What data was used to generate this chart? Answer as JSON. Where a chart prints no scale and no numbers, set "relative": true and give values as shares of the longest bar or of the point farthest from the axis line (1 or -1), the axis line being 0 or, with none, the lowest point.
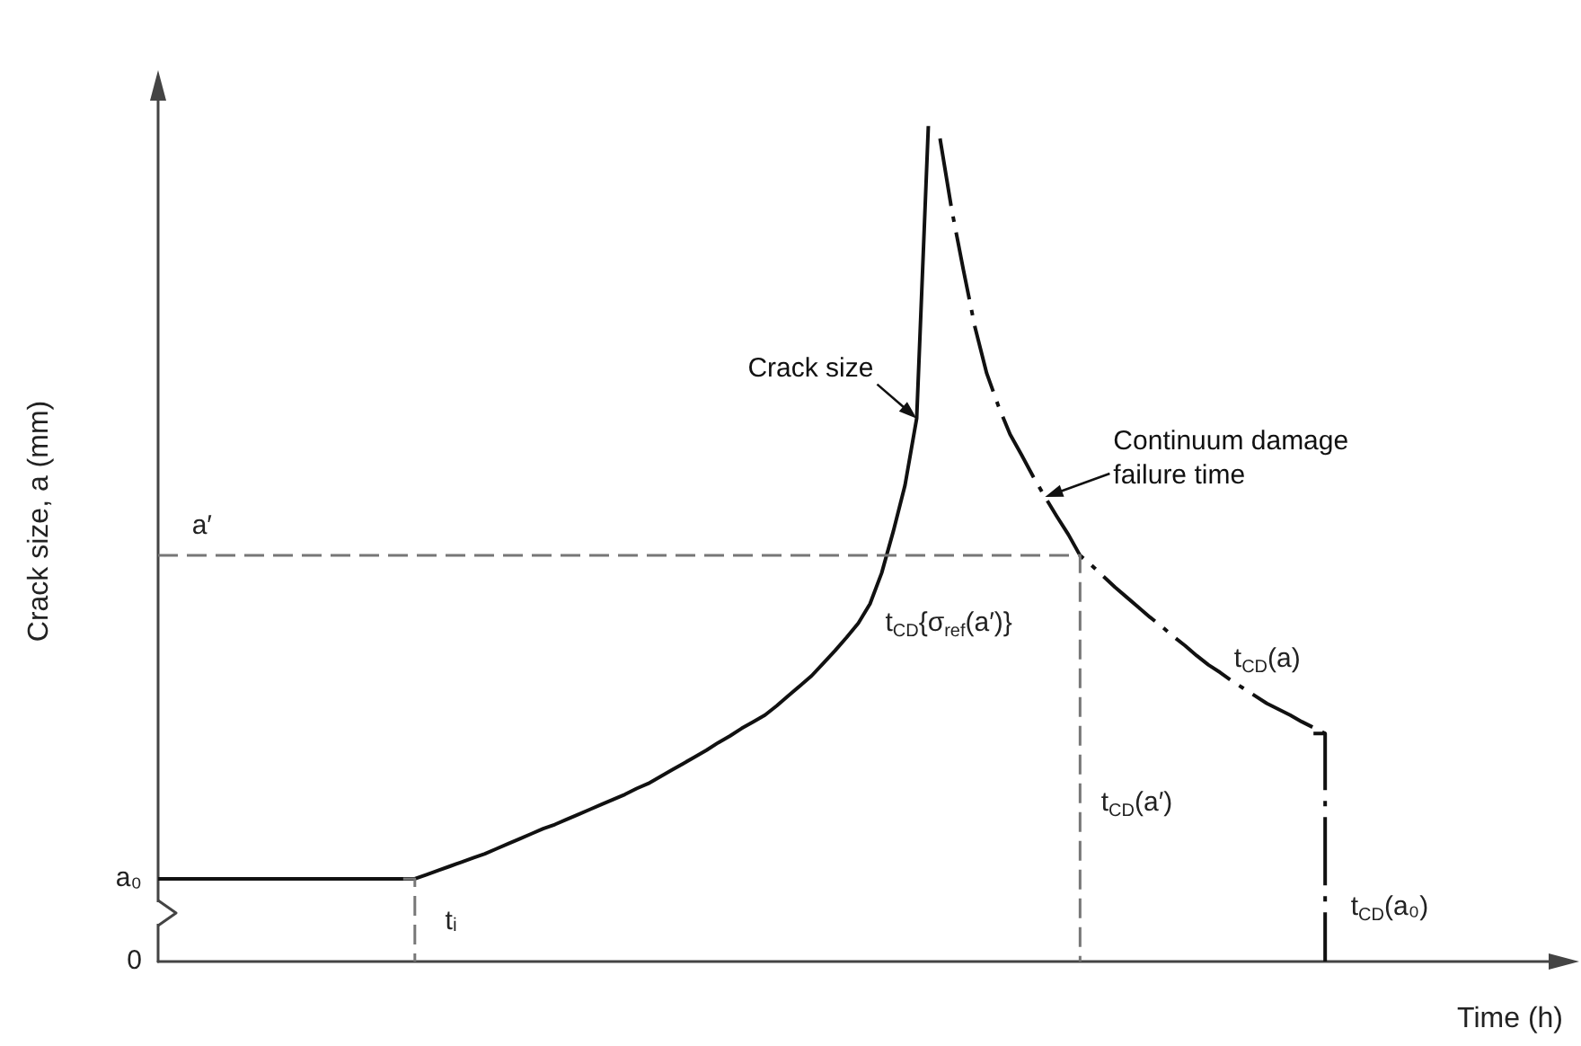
{
  "chart_data": {
    "type": "line",
    "xlabel": "Time (h)",
    "ylabel": "Crack size, a (mm)",
    "relative": true,
    "marker": "none",
    "categories": [
      null,
      null,
      null,
      null,
      null,
      null,
      null,
      null,
      null,
      null,
      null,
      null,
      null,
      null,
      null,
      null,
      null,
      null,
      null,
      null,
      null,
      null,
      null,
      null,
      null,
      null,
      null,
      null,
      null,
      null,
      null,
      null,
      null,
      null,
      null,
      null,
      null,
      null,
      null,
      null,
      null,
      null,
      null,
      null,
      null,
      null,
      null,
      null,
      null,
      null,
      null,
      null,
      null,
      null,
      null,
      null,
      null,
      null,
      null,
      null,
      null,
      null,
      null,
      null,
      null,
      null,
      null,
      null,
      null,
      null,
      null,
      null,
      null,
      null,
      null,
      null,
      null,
      null,
      null,
      null,
      null,
      null,
      null,
      null,
      null,
      null,
      null,
      null,
      null,
      null,
      null,
      null,
      null,
      null,
      null,
      null,
      null,
      null,
      null,
      null,
      null,
      null,
      null,
      null,
      null,
      null,
      null,
      null,
      null,
      null,
      null,
      null,
      null,
      null,
      null,
      null,
      null,
      null,
      null,
      null,
      null,
      null
    ],
    "series": [
      {
        "name": "Crack size",
        "color": "#111111",
        "line_style": "solid",
        "values": [
          0.099,
          0.099,
          0.099,
          0.099,
          0.099,
          0.099,
          0.099,
          0.099,
          0.099,
          0.099,
          0.099,
          0.099,
          0.099,
          0.099,
          0.099,
          0.099,
          0.099,
          0.099,
          0.099,
          0.099,
          0.099,
          0.099,
          0.099,
          0.104,
          0.109,
          0.114,
          0.119,
          0.124,
          0.129,
          0.135,
          0.141,
          0.147,
          0.153,
          0.159,
          0.164,
          0.17,
          0.176,
          0.182,
          0.188,
          0.194,
          0.2,
          0.207,
          0.213,
          0.221,
          0.229,
          0.237,
          0.245,
          0.253,
          0.262,
          0.27,
          0.279,
          0.287,
          0.295,
          0.306,
          0.318,
          0.33,
          0.342,
          0.357,
          0.372,
          0.388,
          0.405,
          0.428,
          0.465,
          0.515,
          0.57,
          0.65,
          1,
          null,
          null,
          null,
          null,
          null,
          null,
          null,
          null,
          null,
          null,
          null,
          null,
          null,
          null,
          null,
          null,
          null,
          null,
          null,
          null,
          null,
          null,
          null,
          null,
          null,
          null,
          null,
          null,
          null,
          null,
          null,
          null,
          null,
          null,
          null,
          null,
          null,
          null,
          null,
          null,
          null,
          null,
          null,
          null,
          null,
          null,
          null,
          null,
          null,
          null,
          null,
          null,
          null,
          null,
          null
        ]
      },
      {
        "name": "Continuum damage failure time",
        "color": "#111111",
        "line_style": "dashdot",
        "values": [
          null,
          null,
          null,
          null,
          null,
          null,
          null,
          null,
          null,
          null,
          null,
          null,
          null,
          null,
          null,
          null,
          null,
          null,
          null,
          null,
          null,
          null,
          null,
          null,
          null,
          null,
          null,
          null,
          null,
          null,
          null,
          null,
          null,
          null,
          null,
          null,
          null,
          null,
          null,
          null,
          null,
          null,
          null,
          null,
          null,
          null,
          null,
          null,
          null,
          null,
          null,
          null,
          null,
          null,
          null,
          null,
          null,
          null,
          null,
          null,
          null,
          null,
          null,
          null,
          null,
          null,
          null,
          0.985,
          0.9,
          0.828,
          0.759,
          0.704,
          0.665,
          0.631,
          0.606,
          0.58,
          0.556,
          0.533,
          0.511,
          0.486,
          0.474,
          0.461,
          0.448,
          0.436,
          0.424,
          0.412,
          0.401,
          0.389,
          0.378,
          0.366,
          0.355,
          0.346,
          0.336,
          0.327,
          0.318,
          0.309,
          0.302,
          0.295,
          0.287,
          0.28,
          0.273,
          null,
          null,
          null,
          null,
          null,
          null,
          null,
          null,
          null,
          null,
          null,
          null,
          null,
          null,
          null,
          null,
          null,
          null,
          null,
          null,
          null
        ]
      },
      {
        "type": "step",
        "color": "#111111",
        "line_style": "dashdot",
        "values": [
          null,
          null,
          null,
          null,
          null,
          null,
          null,
          null,
          null,
          null,
          null,
          null,
          null,
          null,
          null,
          null,
          null,
          null,
          null,
          null,
          null,
          null,
          null,
          null,
          null,
          null,
          null,
          null,
          null,
          null,
          null,
          null,
          null,
          null,
          null,
          null,
          null,
          null,
          null,
          null,
          null,
          null,
          null,
          null,
          null,
          null,
          null,
          null,
          null,
          null,
          null,
          null,
          null,
          null,
          null,
          null,
          null,
          null,
          null,
          null,
          null,
          null,
          null,
          null,
          null,
          null,
          null,
          null,
          null,
          null,
          null,
          null,
          null,
          null,
          null,
          null,
          null,
          null,
          null,
          null,
          null,
          null,
          null,
          null,
          null,
          null,
          null,
          null,
          null,
          null,
          null,
          null,
          null,
          null,
          null,
          null,
          null,
          null,
          null,
          0.273,
          0,
          null,
          null,
          null,
          null,
          null,
          null,
          null,
          null,
          null,
          null,
          null,
          null,
          null,
          null,
          null,
          null,
          null,
          null,
          null,
          null,
          null
        ]
      },
      {
        "type": "step",
        "color": "#777777",
        "line_style": "dashed",
        "values": [
          0.486,
          0.486,
          0.486,
          0.486,
          0.486,
          0.486,
          0.486,
          0.486,
          0.486,
          0.486,
          0.486,
          0.486,
          0.486,
          0.486,
          0.486,
          0.486,
          0.486,
          0.486,
          0.486,
          0.486,
          0.486,
          0.486,
          0.486,
          0.486,
          0.486,
          0.486,
          0.486,
          0.486,
          0.486,
          0.486,
          0.486,
          0.486,
          0.486,
          0.486,
          0.486,
          0.486,
          0.486,
          0.486,
          0.486,
          0.486,
          0.486,
          0.486,
          0.486,
          0.486,
          0.486,
          0.486,
          0.486,
          0.486,
          0.486,
          0.486,
          0.486,
          0.486,
          0.486,
          0.486,
          0.486,
          0.486,
          0.486,
          0.486,
          0.486,
          0.486,
          0.486,
          0.486,
          0.486,
          0.486,
          0.486,
          0.486,
          0.486,
          0.486,
          0.486,
          0.486,
          0.486,
          0.486,
          0.486,
          0.486,
          0.486,
          0.486,
          0.486,
          0.486,
          0.486,
          0,
          null,
          null,
          null,
          null,
          null,
          null,
          null,
          null,
          null,
          null,
          null,
          null,
          null,
          null,
          null,
          null,
          null,
          null,
          null,
          null,
          null,
          null,
          null,
          null,
          null,
          null,
          null,
          null,
          null,
          null,
          null,
          null,
          null,
          null,
          null,
          null,
          null,
          null,
          null,
          null,
          null,
          null
        ]
      },
      {
        "type": "step",
        "color": "#777777",
        "line_style": "dashed",
        "values": [
          null,
          null,
          null,
          null,
          null,
          null,
          null,
          null,
          null,
          null,
          null,
          null,
          null,
          null,
          null,
          null,
          null,
          null,
          null,
          null,
          null,
          0.099,
          0,
          null,
          null,
          null,
          null,
          null,
          null,
          null,
          null,
          null,
          null,
          null,
          null,
          null,
          null,
          null,
          null,
          null,
          null,
          null,
          null,
          null,
          null,
          null,
          null,
          null,
          null,
          null,
          null,
          null,
          null,
          null,
          null,
          null,
          null,
          null,
          null,
          null,
          null,
          null,
          null,
          null,
          null,
          null,
          null,
          null,
          null,
          null,
          null,
          null,
          null,
          null,
          null,
          null,
          null,
          null,
          null,
          null,
          null,
          null,
          null,
          null,
          null,
          null,
          null,
          null,
          null,
          null,
          null,
          null,
          null,
          null,
          null,
          null,
          null,
          null,
          null,
          null,
          null,
          null,
          null,
          null,
          null,
          null,
          null,
          null,
          null,
          null,
          null,
          null,
          null,
          null,
          null,
          null,
          null,
          null,
          null,
          null,
          null,
          null
        ]
      }
    ],
    "annotations": [
      {
        "text": "a′",
        "y": 0.486
      },
      "a₀",
      "0",
      "tᵢ",
      "t$_{CD}${σ$_{ref}$(a′)}",
      "t$_{CD}$(a)",
      "t$_{CD}$(a′)",
      "t$_{CD}$(a₀)"
    ]
  }
}
